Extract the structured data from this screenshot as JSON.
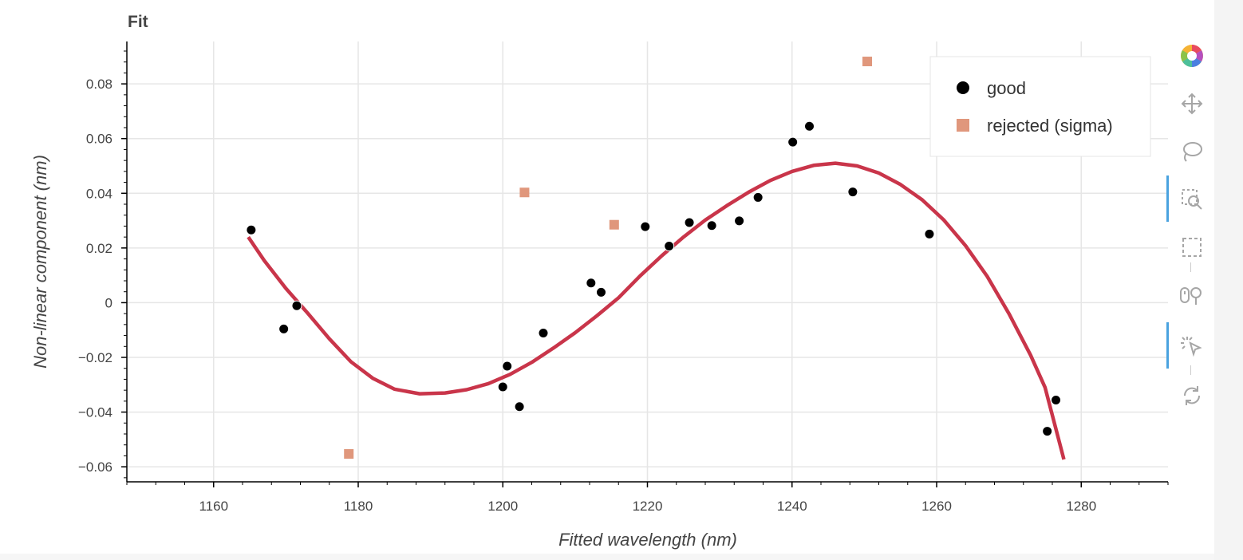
{
  "chart_data": {
    "type": "scatter",
    "title": "Fit",
    "xlabel": "Fitted wavelength (nm)",
    "ylabel": "Non-linear component (nm)",
    "xlim": [
      1148,
      1292
    ],
    "ylim": [
      -0.0655,
      0.0955
    ],
    "xticks": [
      1160,
      1180,
      1200,
      1220,
      1240,
      1260,
      1280
    ],
    "yticks": [
      -0.06,
      -0.04,
      -0.02,
      0,
      0.02,
      0.04,
      0.06,
      0.08
    ],
    "ytick_labels": [
      "−0.06",
      "−0.04",
      "−0.02",
      "0",
      "0.02",
      "0.04",
      "0.06",
      "0.08"
    ],
    "grid": true,
    "legend_position": "top-right",
    "series": [
      {
        "name": "good",
        "marker": "circle",
        "color": "#000000",
        "points": [
          [
            1165.2,
            0.0266
          ],
          [
            1169.7,
            -0.0096
          ],
          [
            1171.5,
            -0.0011
          ],
          [
            1200.0,
            -0.0308
          ],
          [
            1200.6,
            -0.0232
          ],
          [
            1202.3,
            -0.038
          ],
          [
            1205.6,
            -0.0111
          ],
          [
            1212.2,
            0.0072
          ],
          [
            1213.6,
            0.0038
          ],
          [
            1219.7,
            0.0278
          ],
          [
            1223.0,
            0.0207
          ],
          [
            1225.8,
            0.0293
          ],
          [
            1228.9,
            0.0282
          ],
          [
            1232.7,
            0.0299
          ],
          [
            1235.3,
            0.0385
          ],
          [
            1240.1,
            0.0587
          ],
          [
            1242.4,
            0.0645
          ],
          [
            1248.4,
            0.0405
          ],
          [
            1259.0,
            0.0251
          ],
          [
            1275.3,
            -0.047
          ],
          [
            1276.5,
            -0.0356
          ]
        ]
      },
      {
        "name": "rejected (sigma)",
        "marker": "square",
        "color": "#e0977c",
        "points": [
          [
            1178.7,
            -0.0553
          ],
          [
            1203.0,
            0.0403
          ],
          [
            1215.4,
            0.0285
          ],
          [
            1250.4,
            0.0882
          ]
        ]
      },
      {
        "marker": "line",
        "color": "#c9354a",
        "points": [
          [
            1164.8,
            0.024
          ],
          [
            1167.0,
            0.0154
          ],
          [
            1170.0,
            0.0052
          ],
          [
            1173.0,
            -0.0038
          ],
          [
            1176.0,
            -0.0132
          ],
          [
            1179.0,
            -0.0216
          ],
          [
            1182.0,
            -0.0276
          ],
          [
            1185.0,
            -0.0316
          ],
          [
            1188.5,
            -0.0333
          ],
          [
            1192.0,
            -0.033
          ],
          [
            1195.0,
            -0.0318
          ],
          [
            1198.0,
            -0.0296
          ],
          [
            1201.0,
            -0.0262
          ],
          [
            1204.0,
            -0.0218
          ],
          [
            1207.0,
            -0.0166
          ],
          [
            1210.0,
            -0.011
          ],
          [
            1213.0,
            -0.0048
          ],
          [
            1216.0,
            0.0018
          ],
          [
            1219.0,
            0.0098
          ],
          [
            1222.0,
            0.0172
          ],
          [
            1225.0,
            0.024
          ],
          [
            1228.0,
            0.0302
          ],
          [
            1231.0,
            0.0355
          ],
          [
            1234.0,
            0.0404
          ],
          [
            1237.0,
            0.0447
          ],
          [
            1240.0,
            0.048
          ],
          [
            1243.0,
            0.0502
          ],
          [
            1246.0,
            0.051
          ],
          [
            1249.0,
            0.05
          ],
          [
            1252.0,
            0.0474
          ],
          [
            1255.0,
            0.0432
          ],
          [
            1258.0,
            0.0376
          ],
          [
            1261.0,
            0.0302
          ],
          [
            1264.0,
            0.0208
          ],
          [
            1267.0,
            0.0096
          ],
          [
            1270.0,
            -0.004
          ],
          [
            1273.0,
            -0.0192
          ],
          [
            1275.0,
            -0.031
          ],
          [
            1277.6,
            -0.0573
          ]
        ]
      }
    ]
  },
  "toolbar": {
    "brand_icon": "bokeh-logo-icon",
    "tools": [
      "pan-icon",
      "lasso-select-icon",
      "box-zoom-icon",
      "box-select-icon",
      "wheel-zoom-icon",
      "tap-icon",
      "reset-icon"
    ],
    "active": [
      "box-zoom-icon",
      "tap-icon"
    ]
  }
}
